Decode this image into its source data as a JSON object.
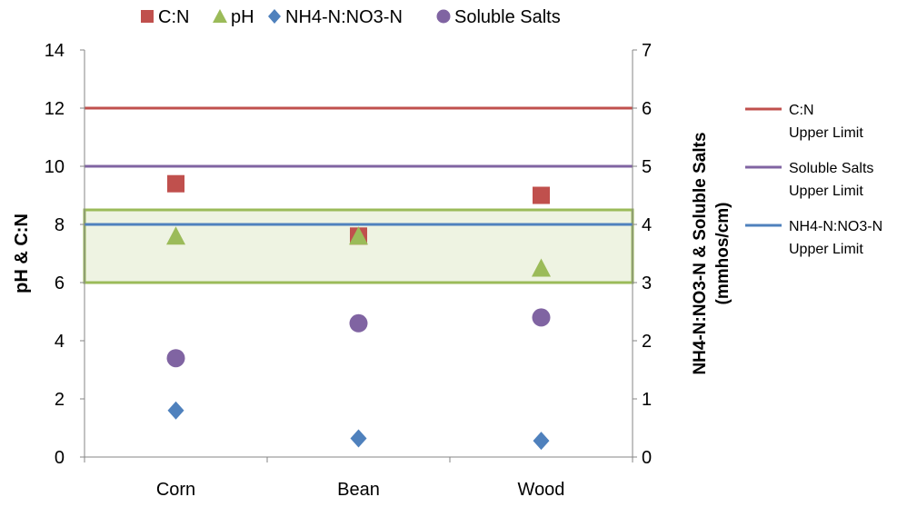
{
  "chart_data": {
    "type": "scatter",
    "categories": [
      "Corn",
      "Bean",
      "Wood"
    ],
    "ylabel_left": "pH & C:N",
    "ylabel_right_line1": "NH4-N:NO3-N & Soluble Salts",
    "ylabel_right_line2": "(mmhos/cm)",
    "ylim_left": [
      0,
      14
    ],
    "ylim_right": [
      0,
      7
    ],
    "left_ticks": [
      "0",
      "2",
      "4",
      "6",
      "8",
      "10",
      "12",
      "14"
    ],
    "right_ticks": [
      "0",
      "1",
      "2",
      "3",
      "4",
      "5",
      "6",
      "7"
    ],
    "legend_placement": "top",
    "legend": [
      {
        "label": "C:N",
        "marker": "square",
        "color": "#c0504d"
      },
      {
        "label": "pH",
        "marker": "triangle",
        "color": "#9bbb59"
      },
      {
        "label": "NH4-N:NO3-N",
        "marker": "diamond",
        "color": "#4f81bd"
      },
      {
        "label": "Soluble Salts",
        "marker": "circle",
        "color": "#8064a2"
      }
    ],
    "series": [
      {
        "name": "C:N",
        "axis": "left",
        "marker": "square",
        "color": "#c0504d",
        "values": [
          9.4,
          7.6,
          9.0
        ]
      },
      {
        "name": "pH",
        "axis": "left",
        "marker": "triangle",
        "color": "#9bbb59",
        "values": [
          7.6,
          7.6,
          6.5
        ]
      },
      {
        "name": "NH4-N:NO3-N",
        "axis": "right",
        "marker": "diamond",
        "color": "#4f81bd",
        "values": [
          0.8,
          0.32,
          0.28
        ]
      },
      {
        "name": "Soluble Salts",
        "axis": "right",
        "marker": "circle",
        "color": "#8064a2",
        "values": [
          1.7,
          2.3,
          2.4
        ]
      }
    ],
    "limit_lines": [
      {
        "label_line1": "C:N",
        "label_line2": "Upper Limit",
        "axis": "left",
        "value": 12,
        "color": "#c0504d"
      },
      {
        "label_line1": "Soluble Salts",
        "label_line2": "Upper Limit",
        "axis": "right",
        "value": 5,
        "color": "#8064a2"
      },
      {
        "label_line1": "NH4-N:NO3-N",
        "label_line2": "Upper Limit",
        "axis": "right",
        "value": 4,
        "color": "#4f81bd"
      }
    ],
    "ph_range_band": {
      "axis": "left",
      "from": 6,
      "to": 8.5,
      "fill": "#eef3e2",
      "stroke": "#9bbb59"
    }
  }
}
